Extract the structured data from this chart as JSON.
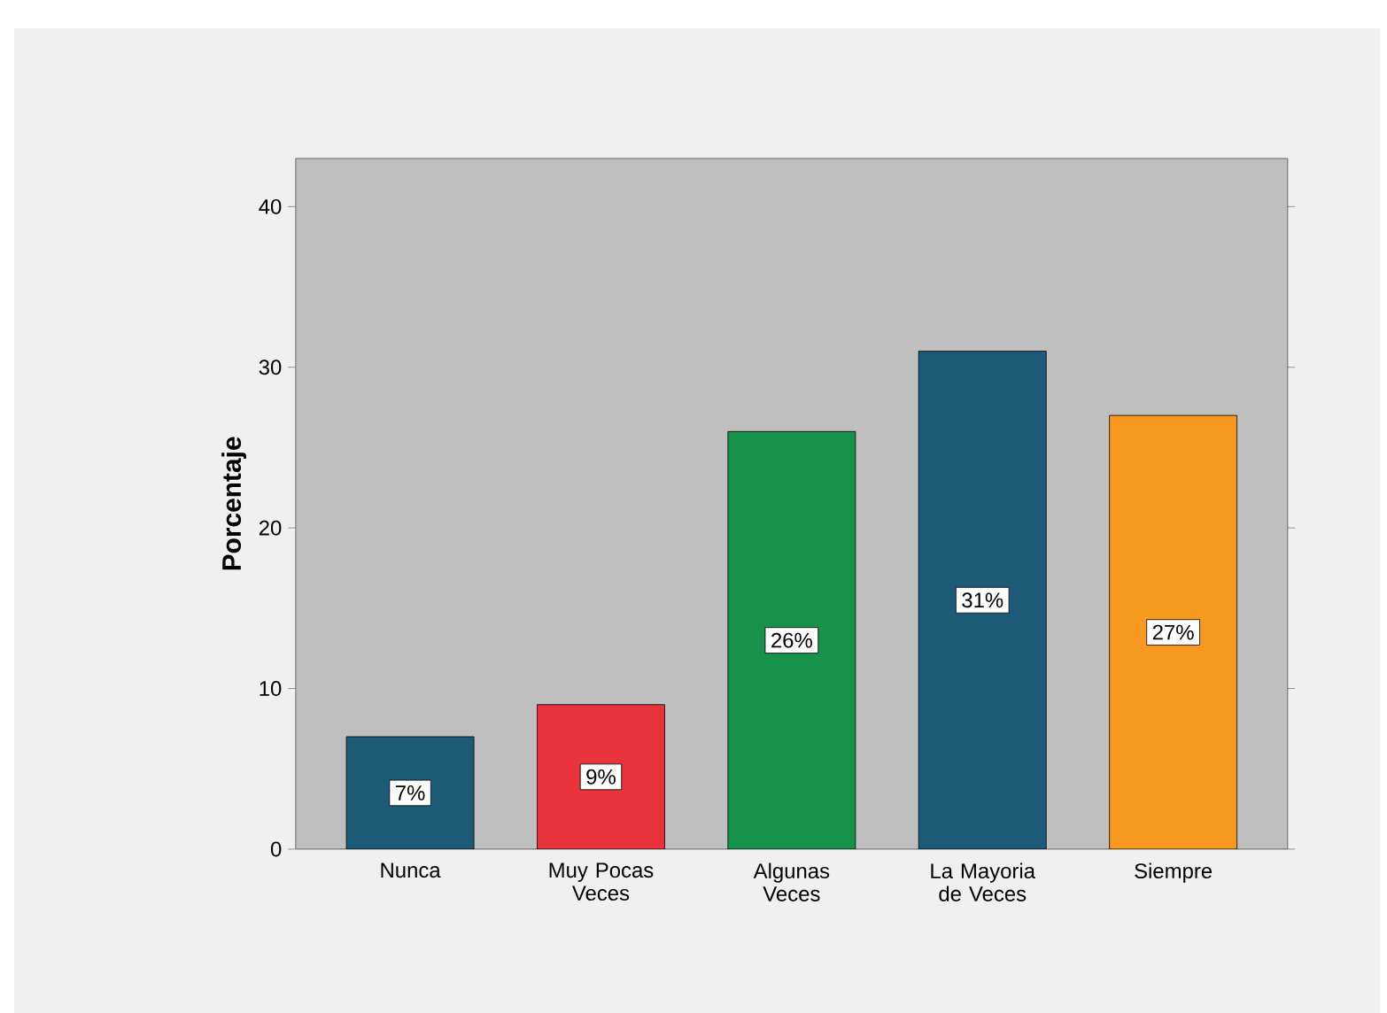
{
  "chart_data": {
    "type": "bar",
    "ylabel": "Porcentaje",
    "categories": [
      "Nunca",
      "Muy Pocas Veces",
      "Algunas Veces",
      "La Mayoria de Veces",
      "Siempre"
    ],
    "values": [
      7,
      9,
      26,
      31,
      27
    ],
    "colors": [
      "#1d5a78",
      "#e8343a",
      "#17924a",
      "#1d5a78",
      "#f7991f"
    ],
    "value_labels": [
      "7%",
      "9%",
      "26%",
      "31%",
      "27%"
    ],
    "ylim": [
      0,
      43
    ],
    "yticks": [
      0,
      10,
      20,
      30,
      40
    ],
    "grid": false
  }
}
